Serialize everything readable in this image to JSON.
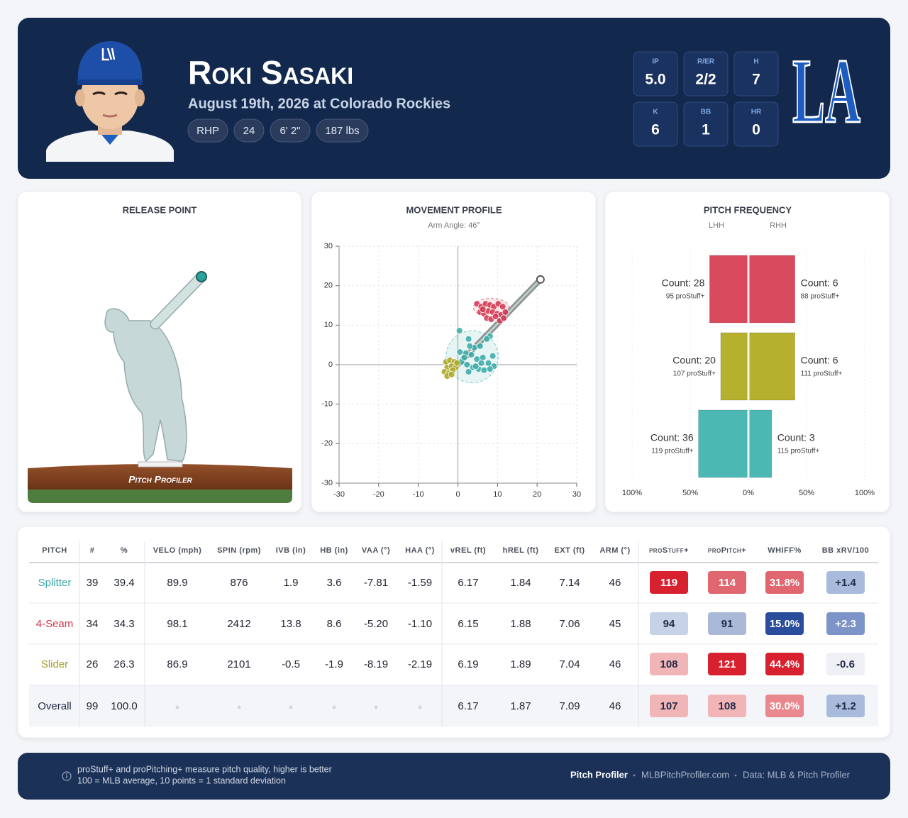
{
  "header": {
    "name": "Roki Sasaki",
    "subtitle": "August 19th, 2026 at Colorado Rockies",
    "tags": [
      "RHP",
      "24",
      "6' 2\"",
      "187 lbs"
    ],
    "stats": [
      {
        "label": "IP",
        "value": "5.0"
      },
      {
        "label": "R/ER",
        "value": "2/2"
      },
      {
        "label": "H",
        "value": "7"
      },
      {
        "label": "K",
        "value": "6"
      },
      {
        "label": "BB",
        "value": "1"
      },
      {
        "label": "HR",
        "value": "0"
      }
    ],
    "team_logo": "LA"
  },
  "release_point": {
    "title": "RELEASE POINT",
    "brand": "Pitch Profiler"
  },
  "chart_data": [
    {
      "type": "scatter",
      "title": "MOVEMENT PROFILE",
      "subtitle": "Arm Angle: 46°",
      "arm_angle": 46,
      "xlim": [
        -30,
        30
      ],
      "ylim": [
        -30,
        30
      ],
      "xticks": [
        -30,
        -20,
        -10,
        0,
        10,
        20,
        30
      ],
      "yticks": [
        -30,
        -20,
        -10,
        0,
        10,
        20,
        30
      ],
      "grid": true,
      "series": [
        {
          "color": "#d2334d",
          "x": [
            4.8,
            5.9,
            7.0,
            8.1,
            9.1,
            10.2,
            11.3,
            5.6,
            6.6,
            7.7,
            8.8,
            9.9,
            10.9,
            12.0,
            7.3,
            8.4,
            9.5,
            10.6,
            6.3,
            11.6
          ],
          "values": [
            15.4,
            14.7,
            15.4,
            15.1,
            14.7,
            15.4,
            14.7,
            13.3,
            12.9,
            13.6,
            13.3,
            12.9,
            12.6,
            13.3,
            11.8,
            11.5,
            12.2,
            11.1,
            14.0,
            11.8
          ],
          "ellipse": {
            "center": [
              8.4,
              14.5
            ],
            "radius": [
              4.5,
              2.3
            ]
          }
        },
        {
          "color": "#35a9a6",
          "x": [
            0.4,
            2.7,
            4.1,
            5.6,
            8.1,
            2.0,
            3.4,
            4.8,
            6.3,
            7.7,
            9.1,
            0.9,
            2.3,
            3.8,
            5.2,
            6.6,
            8.1,
            3.0,
            1.6,
            4.5,
            7.3,
            5.9,
            8.8,
            2.7,
            0.5
          ],
          "values": [
            8.6,
            6.5,
            4.3,
            4.7,
            7.2,
            2.9,
            2.5,
            1.4,
            1.8,
            0.4,
            -0.4,
            0.7,
            0,
            -0.7,
            -1.1,
            -1.4,
            -1.1,
            4.7,
            1.8,
            -0.4,
            6.5,
            0.4,
            2.2,
            -1.8,
            3.2
          ],
          "ellipse": {
            "center": [
              3.6,
              2.0
            ],
            "radius": [
              6.6,
              6.6
            ]
          }
        },
        {
          "color": "#a9a41f",
          "x": [
            -3.0,
            -2.0,
            -0.9,
            -2.7,
            -1.6,
            -0.5,
            -3.4,
            -2.3,
            -1.3,
            -2.7,
            -0.2,
            -1.6
          ],
          "values": [
            0.7,
            1.1,
            0.7,
            -0.7,
            -0.4,
            -0.7,
            -1.8,
            -2.2,
            -1.4,
            -2.9,
            0.4,
            -2.5
          ]
        }
      ]
    },
    {
      "type": "bar",
      "title": "PITCH FREQUENCY",
      "xlim": [
        -100,
        100
      ],
      "xticks": [
        {
          "value": -100,
          "label": "100%"
        },
        {
          "value": -50,
          "label": "50%"
        },
        {
          "value": 0,
          "label": "0%"
        },
        {
          "value": 50,
          "label": "50%"
        },
        {
          "value": 100,
          "label": "100%"
        }
      ],
      "bar_colors": [
        "#d94a5e",
        "#b5b02e",
        "#4bb8b4"
      ],
      "series": [
        {
          "name": "LHH",
          "values": [
            -33.3,
            -23.8,
            -42.9
          ],
          "count_labels": [
            "Count: 28",
            "Count: 20",
            "Count: 36"
          ],
          "stuff_labels": [
            "95 proStuff+",
            "107 proStuff+",
            "119 proStuff+"
          ]
        },
        {
          "name": "RHH",
          "values": [
            40,
            40,
            20
          ],
          "count_labels": [
            "Count: 6",
            "Count: 6",
            "Count: 3"
          ],
          "stuff_labels": [
            "88 proStuff+",
            "111 proStuff+",
            "115 proStuff+"
          ]
        }
      ]
    }
  ],
  "table": {
    "headers": [
      "PITCH",
      "#",
      "%",
      "VELO (mph)",
      "SPIN (rpm)",
      "IVB (in)",
      "HB (in)",
      "VAA (°)",
      "HAA (°)",
      "vREL (ft)",
      "hREL (ft)",
      "EXT (ft)",
      "ARM (°)",
      "proStuff+",
      "proPitch+",
      "WHIFF%",
      "BB xRV/100"
    ],
    "rows": [
      [
        "Splitter",
        "39",
        "39.4",
        "89.9",
        "876",
        "1.9",
        "3.6",
        "-7.81",
        "-1.59",
        "6.17",
        "1.84",
        "7.14",
        "46",
        "119",
        "114",
        "31.8%",
        "+1.4"
      ],
      [
        "4-Seam",
        "34",
        "34.3",
        "98.1",
        "2412",
        "13.8",
        "8.6",
        "-5.20",
        "-1.10",
        "6.15",
        "1.88",
        "7.06",
        "45",
        "94",
        "91",
        "15.0%",
        "+2.3"
      ],
      [
        "Slider",
        "26",
        "26.3",
        "86.9",
        "2101",
        "-0.5",
        "-1.9",
        "-8.19",
        "-2.19",
        "6.19",
        "1.89",
        "7.04",
        "46",
        "108",
        "121",
        "44.4%",
        "-0.6"
      ],
      [
        "Overall",
        "99",
        "100.0",
        null,
        null,
        null,
        null,
        null,
        null,
        "6.17",
        "1.87",
        "7.09",
        "46",
        "107",
        "108",
        "30.0%",
        "+1.2"
      ]
    ],
    "row_colors": [
      "#3aa8a8",
      "#d1344a",
      "#a3a025",
      "#1f2a44"
    ],
    "badge_colors": [
      [
        "#d7212f",
        "#e06670",
        "#e06670",
        "#a9bbdc"
      ],
      [
        "#c6d2e6",
        "#aab9d8",
        "#2a4d9c",
        "#7d94c8"
      ],
      [
        "#f1b5b8",
        "#d7212f",
        "#d7212f",
        "#eef0f5"
      ],
      [
        "#f1b5b8",
        "#f1b5b8",
        "#e9888e",
        "#a9bbdc"
      ]
    ]
  },
  "footer": {
    "note": [
      "proStuff+ and proPitching+ measure pitch quality, higher is better",
      "100 = MLB average, 10 points = 1 standard deviation"
    ],
    "brand": "Pitch Profiler",
    "site": "MLBPitchProfiler.com",
    "source": "Data: MLB & Pitch Profiler"
  }
}
